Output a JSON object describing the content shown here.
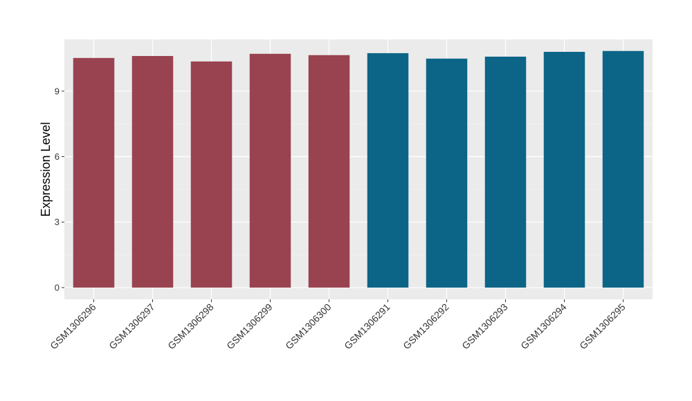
{
  "chart_data": {
    "type": "bar",
    "ylabel": "Expression Level",
    "categories": [
      "GSM1306296",
      "GSM1306297",
      "GSM1306298",
      "GSM1306299",
      "GSM1306300",
      "GSM1306291",
      "GSM1306292",
      "GSM1306293",
      "GSM1306294",
      "GSM1306295"
    ],
    "values": [
      10.52,
      10.61,
      10.36,
      10.71,
      10.65,
      10.74,
      10.49,
      10.58,
      10.8,
      10.84
    ],
    "colors": [
      "#9a4350",
      "#9a4350",
      "#9a4350",
      "#9a4350",
      "#9a4350",
      "#0c6587",
      "#0c6587",
      "#0c6587",
      "#0c6587",
      "#0c6587"
    ],
    "ylim": [
      -0.54,
      11.37
    ],
    "yticks": [
      0,
      3,
      6,
      9
    ],
    "grid": true
  }
}
